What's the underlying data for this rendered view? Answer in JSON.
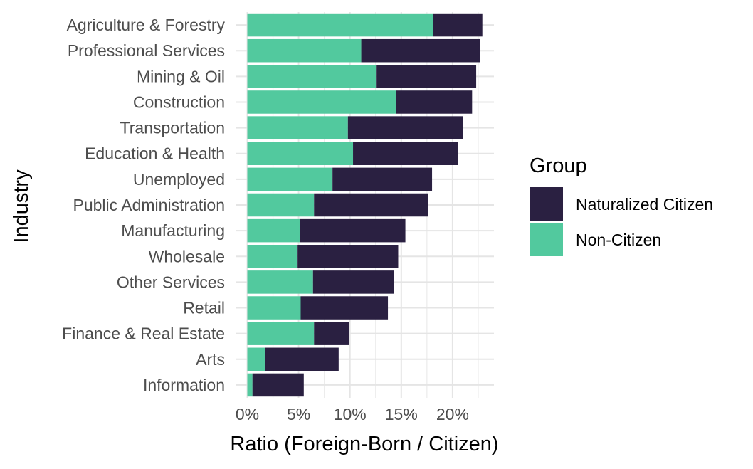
{
  "chart_data": {
    "type": "bar",
    "orientation": "horizontal",
    "stacked": true,
    "categories": [
      "Agriculture & Forestry",
      "Professional Services",
      "Mining & Oil",
      "Construction",
      "Transportation",
      "Education & Health",
      "Unemployed",
      "Public Administration",
      "Manufacturing",
      "Wholesale",
      "Other Services",
      "Retail",
      "Finance & Real Estate",
      "Arts",
      "Information"
    ],
    "series": [
      {
        "name": "Non-Citizen",
        "color": "#52C99E",
        "values": [
          18.1,
          11.1,
          12.6,
          14.5,
          9.8,
          10.3,
          8.3,
          6.5,
          5.1,
          4.9,
          6.4,
          5.2,
          6.5,
          1.7,
          0.5
        ]
      },
      {
        "name": "Naturalized Citizen",
        "color": "#2A2041",
        "values": [
          4.8,
          11.6,
          9.7,
          7.4,
          11.2,
          10.2,
          9.7,
          11.1,
          10.3,
          9.8,
          7.9,
          8.5,
          3.4,
          7.2,
          5.0
        ]
      }
    ],
    "xlabel": "Ratio (Foreign-Born / Citizen)",
    "ylabel": "Industry",
    "xlim": [
      0,
      24
    ],
    "x_ticks": [
      "0%",
      "5%",
      "10%",
      "15%",
      "20%"
    ],
    "x_tick_values": [
      0,
      5,
      10,
      15,
      20
    ],
    "grid": true,
    "legend": {
      "title": "Group",
      "placement": "right",
      "entries": [
        "Naturalized Citizen",
        "Non-Citizen"
      ]
    }
  }
}
